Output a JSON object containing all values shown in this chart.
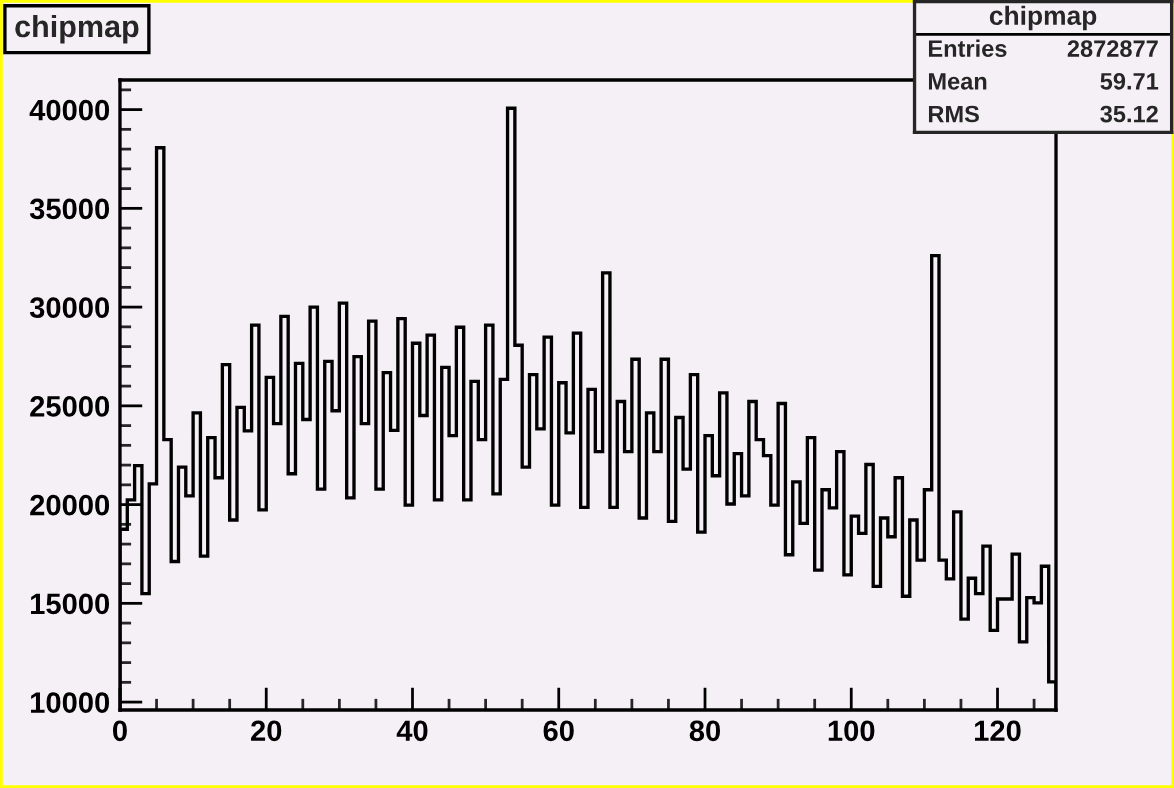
{
  "chart_data": {
    "type": "histogram",
    "title": "chipmap",
    "bins": [
      0,
      1,
      2,
      3,
      4,
      5,
      6,
      7,
      8,
      9,
      10,
      11,
      12,
      13,
      14,
      15,
      16,
      17,
      18,
      19,
      20,
      21,
      22,
      23,
      24,
      25,
      26,
      27,
      28,
      29,
      30,
      31,
      32,
      33,
      34,
      35,
      36,
      37,
      38,
      39,
      40,
      41,
      42,
      43,
      44,
      45,
      46,
      47,
      48,
      49,
      50,
      51,
      52,
      53,
      54,
      55,
      56,
      57,
      58,
      59,
      60,
      61,
      62,
      63,
      64,
      65,
      66,
      67,
      68,
      69,
      70,
      71,
      72,
      73,
      74,
      75,
      76,
      77,
      78,
      79,
      80,
      81,
      82,
      83,
      84,
      85,
      86,
      87,
      88,
      89,
      90,
      91,
      92,
      93,
      94,
      95,
      96,
      97,
      98,
      99,
      100,
      101,
      102,
      103,
      104,
      105,
      106,
      107,
      108,
      109,
      110,
      111,
      112,
      113,
      114,
      115,
      116,
      117,
      118,
      119,
      120,
      121,
      122,
      123,
      124,
      125,
      126,
      127,
      128
    ],
    "values": [
      18750,
      20240,
      21970,
      15490,
      21050,
      38070,
      23290,
      17120,
      21900,
      20440,
      24640,
      17390,
      23390,
      21360,
      27090,
      19220,
      24920,
      23730,
      29090,
      19730,
      26440,
      24100,
      29530,
      21560,
      27150,
      24310,
      30000,
      20780,
      27250,
      24750,
      30200,
      20340,
      27490,
      24100,
      29290,
      20780,
      26680,
      23760,
      29420,
      19970,
      28170,
      24510,
      28580,
      20240,
      26950,
      23490,
      28980,
      20240,
      26240,
      23290,
      29090,
      20540,
      26340,
      40070,
      28070,
      21900,
      26580,
      23830,
      28480,
      19970,
      26170,
      23630,
      28680,
      19860,
      25830,
      22680,
      31730,
      19860,
      25220,
      22680,
      27360,
      19320,
      24640,
      22680,
      27360,
      19150,
      24410,
      21800,
      26580,
      18610,
      23490,
      21460,
      25660,
      20030,
      22580,
      20440,
      25220,
      23290,
      22480,
      19970,
      25120,
      17460,
      21150,
      19050,
      23390,
      16680,
      20750,
      19830,
      22680,
      16440,
      19420,
      18540,
      22030,
      15860,
      19320,
      18370,
      21360,
      15360,
      19220,
      17190,
      20750,
      32610,
      17190,
      16240,
      19630,
      14200,
      16270,
      15490,
      17900,
      13630,
      15220,
      15220,
      17490,
      13050,
      15290,
      15020,
      16880,
      11020
    ],
    "color": "#000000",
    "xlim": [
      0,
      128
    ],
    "xticks": [
      0,
      20,
      40,
      60,
      80,
      100,
      120
    ],
    "ylim": [
      9600,
      41500
    ],
    "yticks": [
      10000,
      15000,
      20000,
      25000,
      30000,
      35000,
      40000
    ],
    "grid": false,
    "annotations": [
      "chipmap",
      "Entries",
      "2872877",
      "Mean",
      "59.71",
      "RMS",
      "35.12"
    ]
  }
}
